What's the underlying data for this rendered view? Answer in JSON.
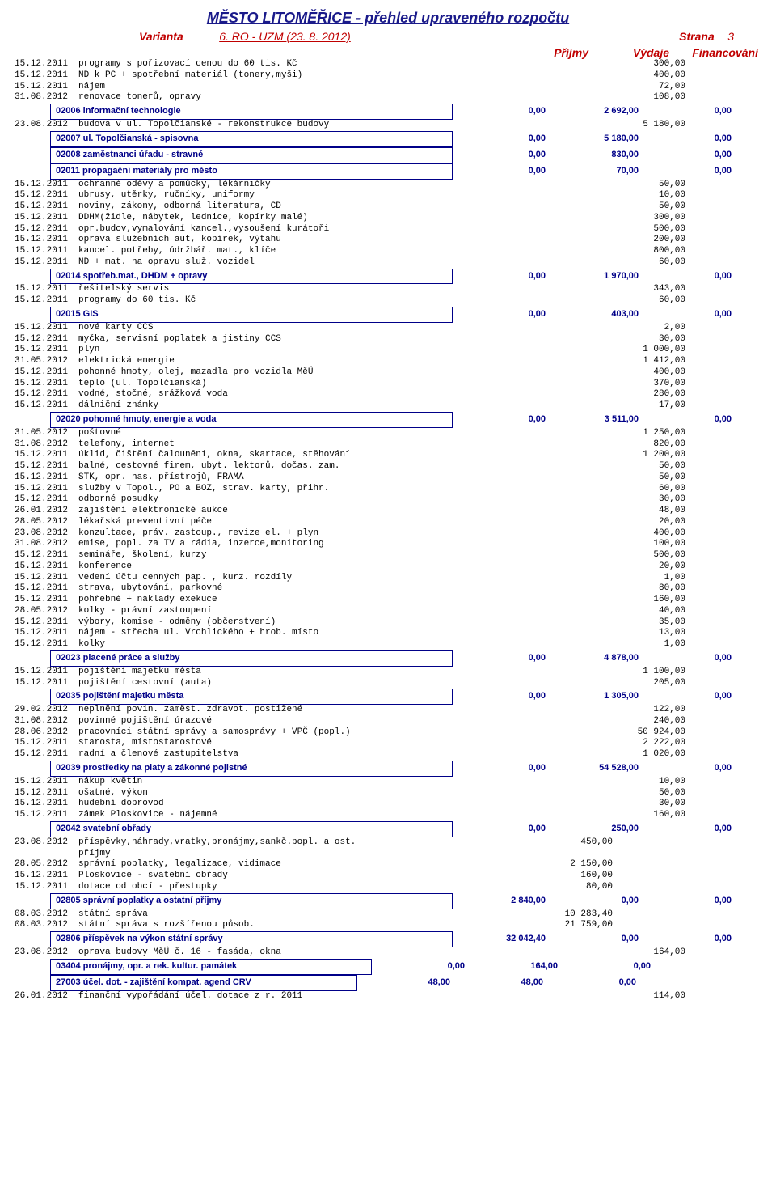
{
  "header": {
    "title": "MĚSTO LITOMĚŘICE - přehled upraveného rozpočtu",
    "varianta_label": "Varianta",
    "varianta_value": "6. RO - UZM (23.  8.  2012)",
    "strana_label": "Strana",
    "strana_value": "3",
    "col_prijmy": "Příjmy",
    "col_vydaje": "Výdaje",
    "col_fin": "Financování"
  },
  "colors": {
    "title": "#1a1a8a",
    "accent": "#c00000",
    "category": "#000088",
    "text": "#000000",
    "background": "#ffffff"
  },
  "rows": [
    {
      "t": "item",
      "date": "15.12.2011",
      "desc": "programy s pořizovací cenou do 60 tis. Kč",
      "n2": "300,00"
    },
    {
      "t": "item",
      "date": "15.12.2011",
      "desc": "ND k PC + spotřební materiál (tonery,myši)",
      "n2": "400,00"
    },
    {
      "t": "item",
      "date": "15.12.2011",
      "desc": "nájem",
      "n2": "72,00"
    },
    {
      "t": "item",
      "date": "31.08.2012",
      "desc": "renovace tonerů, opravy",
      "n2": "108,00"
    },
    {
      "t": "cat",
      "cls": "indent",
      "code": "02006",
      "label": "informační technologie",
      "n1": "0,00",
      "n2": "2 692,00",
      "n3": "0,00"
    },
    {
      "t": "item",
      "date": "23.08.2012",
      "desc": "budova v ul. Topolčianské - rekonstrukce budovy",
      "n2": "5 180,00"
    },
    {
      "t": "cat",
      "cls": "indent",
      "code": "02007",
      "label": "ul. Topolčianská - spisovna",
      "n1": "0,00",
      "n2": "5 180,00",
      "n3": "0,00"
    },
    {
      "t": "cat",
      "cls": "indent",
      "code": "02008",
      "label": "zaměstnanci úřadu - stravné",
      "n1": "0,00",
      "n2": "830,00",
      "n3": "0,00"
    },
    {
      "t": "cat",
      "cls": "indent",
      "code": "02011",
      "label": "propagační materiály pro město",
      "n1": "0,00",
      "n2": "70,00",
      "n3": "0,00"
    },
    {
      "t": "item",
      "date": "15.12.2011",
      "desc": "ochranné oděvy a pomůcky, lékárničky",
      "n2": "50,00"
    },
    {
      "t": "item",
      "date": "15.12.2011",
      "desc": "ubrusy, utěrky, ručníky, uniformy",
      "n2": "10,00"
    },
    {
      "t": "item",
      "date": "15.12.2011",
      "desc": "noviny, zákony, odborná literatura, CD",
      "n2": "50,00"
    },
    {
      "t": "item",
      "date": "15.12.2011",
      "desc": "DDHM(židle, nábytek, lednice, kopírky malé)",
      "n2": "300,00"
    },
    {
      "t": "item",
      "date": "15.12.2011",
      "desc": "opr.budov,vymalování kancel.,vysoušení kurátoři",
      "n2": "500,00"
    },
    {
      "t": "item",
      "date": "15.12.2011",
      "desc": "oprava služebních aut, kopírek, výtahu",
      "n2": "200,00"
    },
    {
      "t": "item",
      "date": "15.12.2011",
      "desc": "kancel. potřeby, údržbář. mat., klíče",
      "n2": "800,00"
    },
    {
      "t": "item",
      "date": "15.12.2011",
      "desc": "ND + mat. na opravu služ. vozidel",
      "n2": "60,00"
    },
    {
      "t": "cat",
      "cls": "indent",
      "code": "02014",
      "label": "spotřeb.mat., DHDM + opravy",
      "n1": "0,00",
      "n2": "1 970,00",
      "n3": "0,00"
    },
    {
      "t": "item",
      "date": "15.12.2011",
      "desc": "řešitelský servis",
      "n2": "343,00"
    },
    {
      "t": "item",
      "date": "15.12.2011",
      "desc": "programy do 60 tis. Kč",
      "n2": "60,00"
    },
    {
      "t": "cat",
      "cls": "indent",
      "code": "02015",
      "label": "GIS",
      "n1": "0,00",
      "n2": "403,00",
      "n3": "0,00"
    },
    {
      "t": "item",
      "date": "15.12.2011",
      "desc": "nové karty CCS",
      "n2": "2,00"
    },
    {
      "t": "item",
      "date": "15.12.2011",
      "desc": "myčka, servisní poplatek a jistiny CCS",
      "n2": "30,00"
    },
    {
      "t": "item",
      "date": "15.12.2011",
      "desc": "plyn",
      "n2": "1 000,00"
    },
    {
      "t": "item",
      "date": "31.05.2012",
      "desc": "elektrická energie",
      "n2": "1 412,00"
    },
    {
      "t": "item",
      "date": "15.12.2011",
      "desc": "pohonné hmoty, olej, mazadla pro vozidla MěÚ",
      "n2": "400,00"
    },
    {
      "t": "item",
      "date": "15.12.2011",
      "desc": "teplo (ul. Topolčianská)",
      "n2": "370,00"
    },
    {
      "t": "item",
      "date": "15.12.2011",
      "desc": "vodné, stočné, srážková voda",
      "n2": "280,00"
    },
    {
      "t": "item",
      "date": "15.12.2011",
      "desc": "dálniční známky",
      "n2": "17,00"
    },
    {
      "t": "cat",
      "cls": "indent",
      "code": "02020",
      "label": "pohonné hmoty, energie a voda",
      "n1": "0,00",
      "n2": "3 511,00",
      "n3": "0,00"
    },
    {
      "t": "item",
      "date": "31.05.2012",
      "desc": "poštovné",
      "n2": "1 250,00"
    },
    {
      "t": "item",
      "date": "31.08.2012",
      "desc": "telefony, internet",
      "n2": "820,00"
    },
    {
      "t": "item",
      "date": "15.12.2011",
      "desc": "úklid, čištění čalounění, okna, skartace, stěhování",
      "n2": "1 200,00"
    },
    {
      "t": "item",
      "date": "15.12.2011",
      "desc": "balné, cestovné firem, ubyt. lektorů, dočas. zam.",
      "n2": "50,00"
    },
    {
      "t": "item",
      "date": "15.12.2011",
      "desc": "STK, opr. has. přístrojů, FRAMA",
      "n2": "50,00"
    },
    {
      "t": "item",
      "date": "15.12.2011",
      "desc": "služby v Topol., PO a BOZ, strav. karty, přihr.",
      "n2": "60,00"
    },
    {
      "t": "item",
      "date": "15.12.2011",
      "desc": "odborné posudky",
      "n2": "30,00"
    },
    {
      "t": "item",
      "date": "26.01.2012",
      "desc": "zajištění elektronické aukce",
      "n2": "48,00"
    },
    {
      "t": "item",
      "date": "28.05.2012",
      "desc": "lékařská preventivní péče",
      "n2": "20,00"
    },
    {
      "t": "item",
      "date": "23.08.2012",
      "desc": "konzultace, práv. zastoup., revize el. + plyn",
      "n2": "400,00"
    },
    {
      "t": "item",
      "date": "31.08.2012",
      "desc": "emise, popl. za TV a rádia, inzerce,monitoring",
      "n2": "100,00"
    },
    {
      "t": "item",
      "date": "15.12.2011",
      "desc": "semináře, školení, kurzy",
      "n2": "500,00"
    },
    {
      "t": "item",
      "date": "15.12.2011",
      "desc": "konference",
      "n2": "20,00"
    },
    {
      "t": "item",
      "date": "15.12.2011",
      "desc": "vedení účtu cenných pap. , kurz. rozdíly",
      "n2": "1,00"
    },
    {
      "t": "item",
      "date": "15.12.2011",
      "desc": "strava, ubytování, parkovné",
      "n2": "80,00"
    },
    {
      "t": "item",
      "date": "15.12.2011",
      "desc": "pohřebné + náklady exekuce",
      "n2": "160,00"
    },
    {
      "t": "item",
      "date": "28.05.2012",
      "desc": "kolky - právní zastoupení",
      "n2": "40,00"
    },
    {
      "t": "item",
      "date": "15.12.2011",
      "desc": "výbory, komise - odměny (občerstvení)",
      "n2": "35,00"
    },
    {
      "t": "item",
      "date": "15.12.2011",
      "desc": "nájem - střecha ul. Vrchlického + hrob. místo",
      "n2": "13,00"
    },
    {
      "t": "item",
      "date": "15.12.2011",
      "desc": "kolky",
      "n2": "1,00"
    },
    {
      "t": "cat",
      "cls": "indent",
      "code": "02023",
      "label": "placené práce a služby",
      "n1": "0,00",
      "n2": "4 878,00",
      "n3": "0,00"
    },
    {
      "t": "item",
      "date": "15.12.2011",
      "desc": "pojištění majetku města",
      "n2": "1 100,00"
    },
    {
      "t": "item",
      "date": "15.12.2011",
      "desc": "pojištění cestovní (auta)",
      "n2": "205,00"
    },
    {
      "t": "cat",
      "cls": "indent",
      "code": "02035",
      "label": "pojištění majetku města",
      "n1": "0,00",
      "n2": "1 305,00",
      "n3": "0,00"
    },
    {
      "t": "item",
      "date": "29.02.2012",
      "desc": "neplnění povin. zaměst. zdravot. postižené",
      "n2": "122,00"
    },
    {
      "t": "item",
      "date": "31.08.2012",
      "desc": "povinné pojištění úrazové",
      "n2": "240,00"
    },
    {
      "t": "item",
      "date": "28.06.2012",
      "desc": "pracovníci státní správy a samosprávy + VPČ (popl.)",
      "n2": "50 924,00"
    },
    {
      "t": "item",
      "date": "15.12.2011",
      "desc": "starosta, místostarostové",
      "n2": "2 222,00"
    },
    {
      "t": "item",
      "date": "15.12.2011",
      "desc": "radní a členové zastupitelstva",
      "n2": "1 020,00"
    },
    {
      "t": "cat",
      "cls": "indent",
      "code": "02039",
      "label": "prostředky na platy a zákonné pojistné",
      "n1": "0,00",
      "n2": "54 528,00",
      "n3": "0,00"
    },
    {
      "t": "item",
      "date": "15.12.2011",
      "desc": "nákup květin",
      "n2": "10,00"
    },
    {
      "t": "item",
      "date": "15.12.2011",
      "desc": "ošatné, výkon",
      "n2": "50,00"
    },
    {
      "t": "item",
      "date": "15.12.2011",
      "desc": "hudební doprovod",
      "n2": "30,00"
    },
    {
      "t": "item",
      "date": "15.12.2011",
      "desc": "zámek Ploskovice - nájemné",
      "n2": "160,00"
    },
    {
      "t": "cat",
      "cls": "indent",
      "code": "02042",
      "label": "svatební obřady",
      "n1": "0,00",
      "n2": "250,00",
      "n3": "0,00"
    },
    {
      "t": "item",
      "date": "23.08.2012",
      "desc": "příspěvky,náhrady,vratky,pronájmy,sankč.popl. a ost.",
      "n1": "450,00"
    },
    {
      "t": "item",
      "date": "",
      "desc": "příjmy"
    },
    {
      "t": "item",
      "date": "28.05.2012",
      "desc": "správní poplatky, legalizace, vidimace",
      "n1": "2 150,00"
    },
    {
      "t": "item",
      "date": "15.12.2011",
      "desc": "Ploskovice - svatební obřady",
      "n1": "160,00"
    },
    {
      "t": "item",
      "date": "15.12.2011",
      "desc": "dotace od obcí - přestupky",
      "n1": "80,00"
    },
    {
      "t": "cat",
      "cls": "indent",
      "code": "02805",
      "label": "správní poplatky a ostatní příjmy",
      "n1": "2 840,00",
      "n2": "0,00",
      "n3": "0,00"
    },
    {
      "t": "item",
      "date": "08.03.2012",
      "desc": "státní správa",
      "n1": "10 283,40"
    },
    {
      "t": "item",
      "date": "08.03.2012",
      "desc": "státní správa s rozšířenou působ.",
      "n1": "21 759,00"
    },
    {
      "t": "cat",
      "cls": "indent",
      "code": "02806",
      "label": "příspěvek na výkon státní správy",
      "n1": "32 042,40",
      "n2": "0,00",
      "n3": "0,00"
    },
    {
      "t": "item",
      "date": "23.08.2012",
      "desc": "oprava budovy MěÚ č. 16 - fasáda, okna",
      "n2": "164,00"
    },
    {
      "t": "cat",
      "cls": "narrow",
      "code": "03404",
      "label": "pronájmy, opr. a rek. kultur. památek",
      "n1": "0,00",
      "n2": "164,00",
      "n3": "0,00"
    },
    {
      "t": "cat",
      "cls": "narrow2",
      "code": "27003",
      "label": "účel. dot. - zajištění kompat. agend CRV",
      "n1": "48,00",
      "n2": "48,00",
      "n3": "0,00"
    },
    {
      "t": "item",
      "date": "26.01.2012",
      "desc": "finanční vypořádání účel. dotace z r. 2011",
      "n2": "114,00"
    }
  ]
}
